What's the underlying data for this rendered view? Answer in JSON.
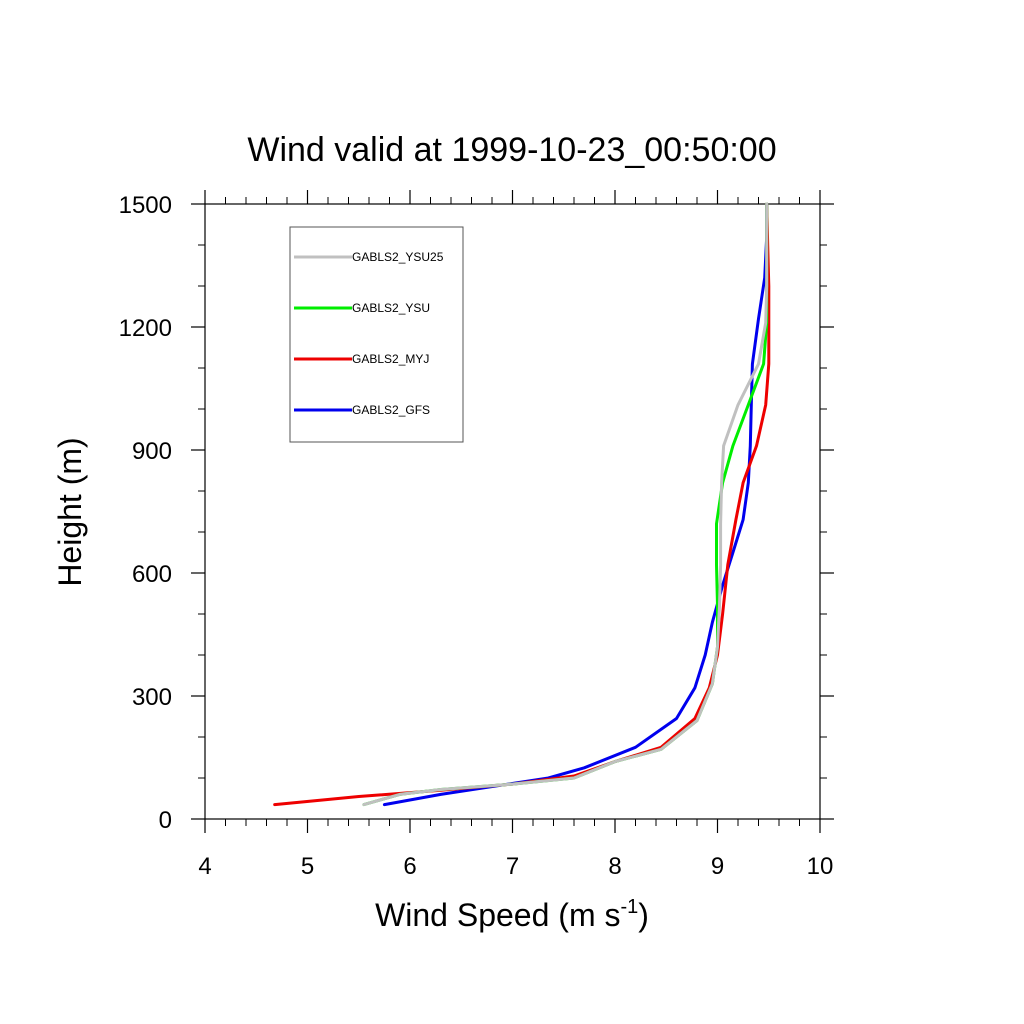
{
  "chart_data": {
    "type": "line",
    "title": "Wind valid at 1999-10-23_00:50:00",
    "xlabel": "Wind Speed (m s",
    "xlabel_sup": "-1",
    "xlabel_end": ")",
    "ylabel": "Height (m)",
    "xlim": [
      4,
      10
    ],
    "ylim": [
      0,
      1500
    ],
    "x_ticks": [
      "4",
      "5",
      "6",
      "7",
      "8",
      "9",
      "10"
    ],
    "y_ticks": [
      "0",
      "300",
      "600",
      "900",
      "1200",
      "1500"
    ],
    "grid": false,
    "legend_position": "top-left",
    "series": [
      {
        "name": "GABLS2_YSU25",
        "color": "#c0c0c0",
        "points": [
          [
            5.55,
            35
          ],
          [
            5.9,
            60
          ],
          [
            6.3,
            72
          ],
          [
            7.0,
            85
          ],
          [
            7.6,
            100
          ],
          [
            8.0,
            140
          ],
          [
            8.45,
            170
          ],
          [
            8.8,
            240
          ],
          [
            8.95,
            330
          ],
          [
            9.0,
            420
          ],
          [
            9.02,
            520
          ],
          [
            9.03,
            620
          ],
          [
            9.03,
            720
          ],
          [
            9.04,
            820
          ],
          [
            9.06,
            910
          ],
          [
            9.2,
            1010
          ],
          [
            9.4,
            1110
          ],
          [
            9.47,
            1210
          ],
          [
            9.48,
            1300
          ],
          [
            9.48,
            1400
          ],
          [
            9.48,
            1500
          ]
        ]
      },
      {
        "name": "GABLS2_YSU",
        "color": "#00ee00",
        "points": [
          [
            5.55,
            35
          ],
          [
            5.9,
            60
          ],
          [
            6.3,
            72
          ],
          [
            7.0,
            85
          ],
          [
            7.6,
            100
          ],
          [
            8.0,
            140
          ],
          [
            8.45,
            170
          ],
          [
            8.8,
            240
          ],
          [
            8.95,
            330
          ],
          [
            9.0,
            420
          ],
          [
            9.0,
            520
          ],
          [
            8.99,
            620
          ],
          [
            8.99,
            720
          ],
          [
            9.05,
            820
          ],
          [
            9.15,
            910
          ],
          [
            9.3,
            1010
          ],
          [
            9.45,
            1110
          ],
          [
            9.48,
            1210
          ],
          [
            9.48,
            1300
          ],
          [
            9.48,
            1400
          ],
          [
            9.48,
            1500
          ]
        ]
      },
      {
        "name": "GABLS2_MYJ",
        "color": "#ee0000",
        "points": [
          [
            4.68,
            35
          ],
          [
            5.5,
            55
          ],
          [
            6.3,
            70
          ],
          [
            7.0,
            85
          ],
          [
            7.6,
            105
          ],
          [
            8.0,
            140
          ],
          [
            8.45,
            175
          ],
          [
            8.78,
            245
          ],
          [
            8.92,
            320
          ],
          [
            9.0,
            400
          ],
          [
            9.05,
            500
          ],
          [
            9.1,
            620
          ],
          [
            9.18,
            730
          ],
          [
            9.25,
            820
          ],
          [
            9.38,
            910
          ],
          [
            9.47,
            1010
          ],
          [
            9.5,
            1110
          ],
          [
            9.5,
            1210
          ],
          [
            9.5,
            1300
          ],
          [
            9.49,
            1400
          ],
          [
            9.48,
            1500
          ]
        ]
      },
      {
        "name": "GABLS2_GFS",
        "color": "#0000ee",
        "points": [
          [
            5.75,
            35
          ],
          [
            6.3,
            60
          ],
          [
            7.35,
            100
          ],
          [
            7.7,
            125
          ],
          [
            8.2,
            175
          ],
          [
            8.6,
            245
          ],
          [
            8.78,
            320
          ],
          [
            8.88,
            400
          ],
          [
            8.95,
            480
          ],
          [
            9.05,
            570
          ],
          [
            9.15,
            650
          ],
          [
            9.25,
            730
          ],
          [
            9.3,
            820
          ],
          [
            9.32,
            910
          ],
          [
            9.33,
            1010
          ],
          [
            9.34,
            1110
          ],
          [
            9.4,
            1220
          ],
          [
            9.46,
            1320
          ],
          [
            9.48,
            1420
          ],
          [
            9.48,
            1500
          ]
        ]
      }
    ]
  }
}
